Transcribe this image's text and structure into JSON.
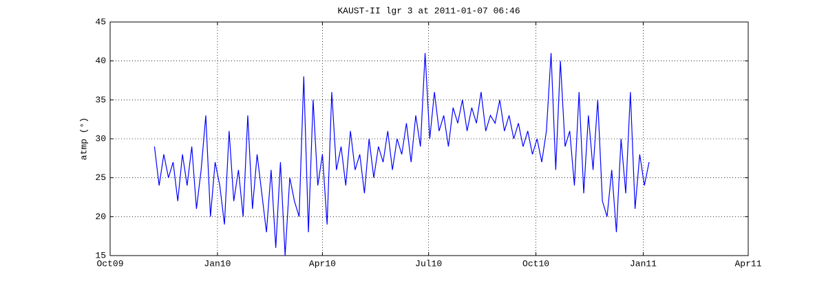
{
  "chart_data": {
    "type": "line",
    "title": "KAUST-II lgr 3 at 2011-01-07 06:46",
    "y_label": "atmp (°)",
    "x": [
      734084,
      734088,
      734092,
      734096,
      734100,
      734104,
      734108,
      734112,
      734116,
      734120,
      734124,
      734128,
      734132,
      734136,
      734140,
      734144,
      734148,
      734152,
      734156,
      734160,
      734164,
      734168,
      734172,
      734176,
      734180,
      734184,
      734188,
      734192,
      734196,
      734200,
      734204,
      734208,
      734212,
      734216,
      734220,
      734224,
      734228,
      734232,
      734236,
      734240,
      734244,
      734248,
      734252,
      734256,
      734260,
      734264,
      734268,
      734272,
      734276,
      734280,
      734284,
      734288,
      734292,
      734296,
      734300,
      734304,
      734308,
      734312,
      734316,
      734320,
      734324,
      734328,
      734332,
      734336,
      734340,
      734344,
      734348,
      734352,
      734356,
      734360,
      734364,
      734368,
      734372,
      734376,
      734380,
      734384,
      734388,
      734392,
      734396,
      734400,
      734404,
      734408,
      734412,
      734416,
      734420,
      734424,
      734428,
      734432,
      734436,
      734440,
      734444,
      734448,
      734452,
      734456,
      734460,
      734464,
      734468,
      734472,
      734476,
      734480,
      734484,
      734488,
      734492,
      734496,
      734500,
      734504,
      734508
    ],
    "series": [
      {
        "name": "atmp",
        "color": "#0000ff",
        "values": [
          29,
          24,
          28,
          25,
          27,
          22,
          28,
          24,
          29,
          21,
          26,
          33,
          20,
          27,
          24,
          19,
          31,
          22,
          26,
          20,
          33,
          21,
          28,
          23,
          18,
          26,
          16,
          27,
          15,
          25,
          22,
          20,
          38,
          18,
          35,
          24,
          28,
          19,
          36,
          26,
          29,
          24,
          31,
          26,
          28,
          23,
          30,
          25,
          29,
          27,
          31,
          26,
          30,
          28,
          32,
          27,
          33,
          29,
          41,
          30,
          36,
          31,
          33,
          29,
          34,
          32,
          35,
          31,
          34,
          32,
          36,
          31,
          33,
          32,
          35,
          31,
          33,
          30,
          32,
          29,
          31,
          28,
          30,
          27,
          31,
          41,
          26,
          40,
          29,
          31,
          24,
          36,
          23,
          33,
          26,
          35,
          22,
          20,
          26,
          18,
          30,
          23,
          36,
          21,
          28,
          24,
          27
        ]
      }
    ],
    "xlim": [
      734046,
      734593
    ],
    "xticks": [
      {
        "value": 734046,
        "label": "Oct09"
      },
      {
        "value": 734138,
        "label": "Jan10"
      },
      {
        "value": 734228,
        "label": "Apr10"
      },
      {
        "value": 734319,
        "label": "Jul10"
      },
      {
        "value": 734411,
        "label": "Oct10"
      },
      {
        "value": 734503,
        "label": "Jan11"
      },
      {
        "value": 734593,
        "label": "Apr11"
      }
    ],
    "ylim": [
      15,
      45
    ],
    "yticks": [
      15,
      20,
      25,
      30,
      35,
      40,
      45
    ],
    "grid": true
  }
}
